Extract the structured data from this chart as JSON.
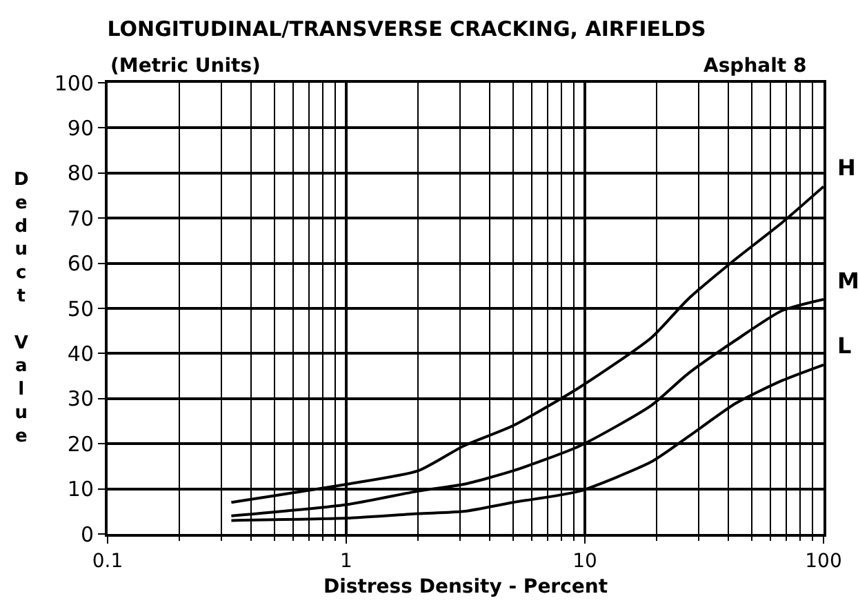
{
  "chart_data": {
    "type": "line",
    "title": "LONGITUDINAL/TRANSVERSE CRACKING, AIRFIELDS",
    "subtitle": "(Metric Units)",
    "xlabel": "Distress Density - Percent",
    "ylabel": "Deduct Value",
    "annotations": [
      "Asphalt 8"
    ],
    "log": "x",
    "grid": true,
    "legend": false,
    "marker": "none",
    "line_style": "solid",
    "xlim": [
      0.1,
      100
    ],
    "xticks": [
      0.1,
      1,
      10,
      100
    ],
    "ylim": [
      0,
      100
    ],
    "yticks": [
      0,
      10,
      20,
      30,
      40,
      50,
      60,
      70,
      80,
      90,
      100
    ],
    "x": [
      0.33,
      1,
      2,
      3.1,
      5,
      9.5,
      19,
      27,
      43,
      67,
      100
    ],
    "series": [
      {
        "name": "H",
        "color": "#000000",
        "values": [
          7,
          11,
          14,
          19.5,
          24,
          32.5,
          43.5,
          52,
          61,
          69,
          77
        ]
      },
      {
        "name": "M",
        "color": "#000000",
        "values": [
          4,
          6.5,
          9.5,
          11,
          14,
          19.5,
          28.5,
          35.5,
          43,
          49.5,
          52
        ]
      },
      {
        "name": "L",
        "color": "#000000",
        "values": [
          3,
          3.5,
          4.5,
          5,
          7,
          9.5,
          16,
          21.5,
          29,
          34,
          37.5
        ]
      }
    ]
  }
}
